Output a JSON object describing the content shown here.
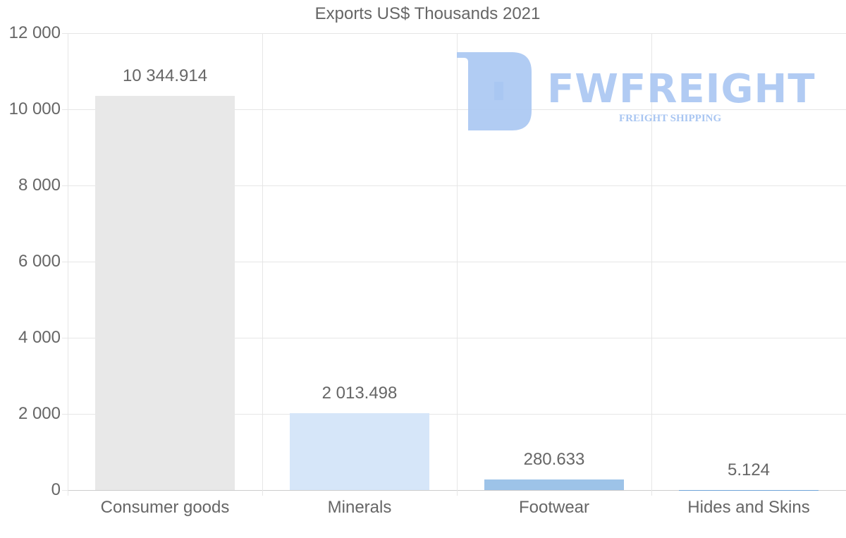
{
  "chart_data": {
    "type": "bar",
    "title": "Exports US$ Thousands 2021",
    "categories": [
      "Consumer goods",
      "Minerals",
      "Footwear",
      "Hides and Skins"
    ],
    "values": [
      10344.914,
      2013.498,
      280.633,
      5.124
    ],
    "value_labels": [
      "10 344.914",
      "2 013.498",
      "280.633",
      "5.124"
    ],
    "bar_colors": [
      "#e8e8e8",
      "#d6e6f9",
      "#9dc3e8",
      "#6fa3d8"
    ],
    "xlabel": "",
    "ylabel": "",
    "ylim": [
      0,
      12000
    ],
    "yticks": [
      0,
      2000,
      4000,
      6000,
      8000,
      10000,
      12000
    ],
    "ytick_labels": [
      "0",
      "2 000",
      "4 000",
      "6 000",
      "8 000",
      "10 000",
      "12 000"
    ],
    "grid": true,
    "legend": null
  },
  "watermark": {
    "brand": "FWFREIGHT",
    "tagline": "FREIGHT SHIPPING",
    "color": "#a9c6f2"
  }
}
